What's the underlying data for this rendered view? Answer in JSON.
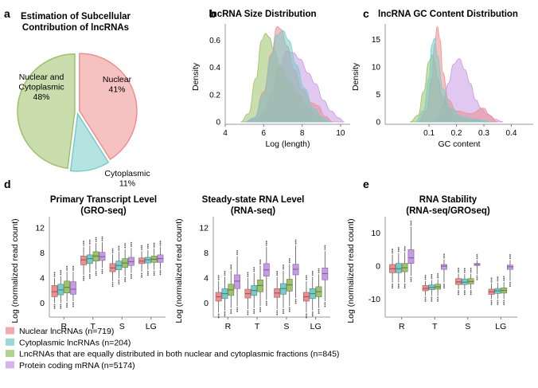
{
  "colors": {
    "nuclear": "#ee8e8e",
    "cytoplasmic": "#76cccb",
    "both": "#9cc26a",
    "protein": "#c79ae6"
  },
  "chart_data": [
    {
      "id": "a",
      "panel_label": "a",
      "type": "pie",
      "title": "Estimation of Subcellular Contribution of lncRNAs",
      "title_lines": [
        "Estimation of Subcellular",
        "Contribution of lncRNAs"
      ],
      "slices": [
        {
          "key": "nuclear",
          "label_lines": [
            "Nuclear",
            "41%"
          ],
          "value": 41
        },
        {
          "key": "cytoplasmic",
          "label_lines": [
            "Cytoplasmic",
            "11%"
          ],
          "value": 11
        },
        {
          "key": "both",
          "label_lines": [
            "Nuclear and",
            "Cytoplasmic",
            "48%"
          ],
          "value": 48
        }
      ]
    },
    {
      "id": "b",
      "panel_label": "b",
      "type": "area",
      "title": "lncRNA Size Distribution",
      "xlabel": "Log (length)",
      "ylabel": "Density",
      "xlim": [
        4,
        10.5
      ],
      "ylim": [
        0,
        0.72
      ],
      "xticks": [
        4,
        6,
        8,
        10
      ],
      "yticks": [
        0,
        0.2,
        0.4,
        0.6
      ],
      "ytick_labels": [
        "0",
        "0.2",
        "0.4",
        "0.6"
      ],
      "series": [
        {
          "key": "protein",
          "x": [
            5.0,
            5.6,
            6.0,
            6.4,
            6.8,
            7.2,
            7.5,
            7.9,
            8.3,
            8.7,
            9.1,
            9.5,
            9.9,
            10.2
          ],
          "y": [
            0,
            0.02,
            0.06,
            0.2,
            0.4,
            0.52,
            0.51,
            0.46,
            0.36,
            0.28,
            0.16,
            0.08,
            0.03,
            0
          ]
        },
        {
          "key": "both",
          "x": [
            4.8,
            5.2,
            5.6,
            5.9,
            6.1,
            6.3,
            6.5,
            6.9,
            7.3,
            7.8,
            8.3,
            8.8,
            9.2
          ],
          "y": [
            0,
            0.06,
            0.32,
            0.6,
            0.65,
            0.62,
            0.54,
            0.4,
            0.3,
            0.2,
            0.1,
            0.04,
            0
          ]
        },
        {
          "key": "nuclear",
          "x": [
            5.0,
            5.5,
            6.0,
            6.4,
            6.7,
            6.9,
            7.2,
            7.6,
            8.0,
            8.5,
            8.8,
            9.2,
            9.6
          ],
          "y": [
            0,
            0.03,
            0.22,
            0.5,
            0.7,
            0.68,
            0.56,
            0.38,
            0.24,
            0.14,
            0.12,
            0.04,
            0
          ]
        },
        {
          "key": "cytoplasmic",
          "x": [
            5.0,
            5.5,
            6.0,
            6.4,
            6.7,
            7.0,
            7.3,
            7.7,
            8.1,
            8.6,
            9.1,
            9.5
          ],
          "y": [
            0,
            0.03,
            0.2,
            0.48,
            0.64,
            0.67,
            0.6,
            0.42,
            0.25,
            0.1,
            0.03,
            0
          ]
        }
      ]
    },
    {
      "id": "c",
      "panel_label": "c",
      "type": "area",
      "title": "lncRNA GC Content Distribution",
      "xlabel": "GC content",
      "ylabel": "Density",
      "xlim": [
        -0.06,
        0.48
      ],
      "ylim": [
        0,
        17.8
      ],
      "xticks": [
        0.1,
        0.2,
        0.3,
        0.4
      ],
      "yticks": [
        0,
        5,
        10,
        15
      ],
      "ytick_labels": [
        "0",
        "5",
        "10",
        "15"
      ],
      "series": [
        {
          "key": "protein",
          "x": [
            0.1,
            0.13,
            0.15,
            0.17,
            0.19,
            0.21,
            0.23,
            0.25,
            0.27,
            0.29,
            0.31,
            0.34,
            0.37
          ],
          "y": [
            0,
            0.5,
            3,
            7,
            10.5,
            11.5,
            9.5,
            7,
            4,
            2.5,
            1.5,
            0.5,
            0
          ]
        },
        {
          "key": "both",
          "x": [
            0.03,
            0.06,
            0.08,
            0.1,
            0.11,
            0.12,
            0.13,
            0.15,
            0.17,
            0.2,
            0.23,
            0.27,
            0.31
          ],
          "y": [
            0,
            1.2,
            5.5,
            11,
            12.2,
            11,
            8,
            4.5,
            2.5,
            1,
            0.5,
            0.3,
            0
          ]
        },
        {
          "key": "nuclear",
          "x": [
            0.06,
            0.09,
            0.11,
            0.12,
            0.13,
            0.14,
            0.15,
            0.17,
            0.2,
            0.25,
            0.3,
            0.32,
            0.35
          ],
          "y": [
            0,
            2,
            8,
            14,
            17.3,
            15,
            9,
            4,
            2,
            1.5,
            2.5,
            1.2,
            0
          ]
        },
        {
          "key": "cytoplasmic",
          "x": [
            0.05,
            0.08,
            0.1,
            0.11,
            0.12,
            0.13,
            0.15,
            0.18,
            0.22,
            0.28,
            0.33
          ],
          "y": [
            0,
            2,
            8,
            14,
            15.2,
            12,
            6,
            2.5,
            1,
            0.4,
            0
          ]
        }
      ]
    },
    {
      "id": "d1",
      "panel_label": "d",
      "type": "box",
      "title": "Primary Transcript Level (GRO-seq)",
      "title_lines": [
        "Primary Transcript Level",
        "(GRO-seq)"
      ],
      "ylabel": "Log (normalized read count)",
      "ylim": [
        -2,
        13.8
      ],
      "yticks": [
        0,
        4,
        8,
        12
      ],
      "categories": [
        "R",
        "T",
        "S",
        "LG"
      ],
      "series_order": [
        "nuclear",
        "cytoplasmic",
        "both",
        "protein"
      ],
      "boxes": {
        "R": {
          "nuclear": [
            0,
            1.0,
            1.8,
            2.8,
            4.0
          ],
          "cytoplasmic": [
            0,
            1.3,
            2.1,
            3.0,
            4.3
          ],
          "both": [
            0.2,
            1.6,
            2.5,
            3.5,
            5.0
          ],
          "protein": [
            0.3,
            1.4,
            2.2,
            3.4,
            5.0
          ]
        },
        "T": {
          "nuclear": [
            4.5,
            6.1,
            6.9,
            7.5,
            9.0
          ],
          "cytoplasmic": [
            4.8,
            6.3,
            7.1,
            7.7,
            9.2
          ],
          "both": [
            5.3,
            6.7,
            7.5,
            8.2,
            9.6
          ],
          "protein": [
            5.6,
            6.8,
            7.4,
            8.1,
            9.7
          ]
        },
        "S": {
          "nuclear": [
            3.5,
            5.0,
            5.6,
            6.3,
            7.8
          ],
          "cytoplasmic": [
            3.9,
            5.3,
            6.0,
            6.7,
            8.2
          ],
          "both": [
            4.3,
            5.7,
            6.4,
            7.1,
            8.6
          ],
          "protein": [
            4.8,
            6.0,
            6.6,
            7.3,
            8.8
          ]
        },
        "LG": {
          "nuclear": [
            5.0,
            6.3,
            6.7,
            7.2,
            8.3
          ],
          "cytoplasmic": [
            5.3,
            6.4,
            6.9,
            7.3,
            8.5
          ],
          "both": [
            5.3,
            6.5,
            7.0,
            7.5,
            8.7
          ],
          "protein": [
            5.4,
            6.5,
            7.1,
            7.7,
            9.0
          ]
        }
      }
    },
    {
      "id": "d2",
      "panel_label": "",
      "type": "box",
      "title": "Steady-state RNA Level (RNA-seq)",
      "title_lines": [
        "Steady-state RNA Level",
        "(RNA-seq)"
      ],
      "ylabel": "Log (normalized read count)",
      "ylim": [
        -2,
        13.8
      ],
      "yticks": [
        0,
        4,
        8,
        12
      ],
      "categories": [
        "R",
        "T",
        "S",
        "LG"
      ],
      "series_order": [
        "nuclear",
        "cytoplasmic",
        "both",
        "protein"
      ],
      "boxes": {
        "R": {
          "nuclear": [
            -1.5,
            0.3,
            1.0,
            1.7,
            3.5
          ],
          "cytoplasmic": [
            -1.2,
            0.7,
            1.5,
            2.3,
            4.2
          ],
          "both": [
            -0.8,
            1.2,
            2.1,
            3.0,
            5.2
          ],
          "protein": [
            -0.5,
            2.3,
            3.5,
            4.5,
            7.5
          ]
        },
        "T": {
          "nuclear": [
            -1.0,
            0.8,
            1.5,
            2.2,
            4.0
          ],
          "cytoplasmic": [
            -0.8,
            1.2,
            2.0,
            2.8,
            4.8
          ],
          "both": [
            -0.5,
            1.8,
            2.8,
            3.7,
            6.0
          ],
          "protein": [
            0.5,
            4.3,
            5.3,
            6.3,
            9.0
          ]
        },
        "S": {
          "nuclear": [
            -1.0,
            0.9,
            1.6,
            2.3,
            4.2
          ],
          "cytoplasmic": [
            -0.8,
            1.4,
            2.3,
            3.1,
            5.2
          ],
          "both": [
            -0.5,
            1.9,
            2.9,
            3.8,
            6.2
          ],
          "protein": [
            0.8,
            4.5,
            5.4,
            6.2,
            9.2
          ]
        },
        "LG": {
          "nuclear": [
            -1.5,
            0.3,
            1.0,
            1.7,
            3.5
          ],
          "cytoplasmic": [
            -1.2,
            0.7,
            1.5,
            2.3,
            4.2
          ],
          "both": [
            -0.8,
            1.0,
            1.8,
            2.6,
            4.6
          ],
          "protein": [
            0.3,
            3.7,
            4.7,
            5.6,
            8.3
          ]
        }
      }
    },
    {
      "id": "e",
      "panel_label": "e",
      "type": "box",
      "title": "RNA Stability (RNA-seq/GROseq)",
      "title_lines": [
        "RNA Stability",
        "(RNA-seq/GROseq)"
      ],
      "ylabel": "Log (normalized read count)",
      "ylim": [
        -15,
        15
      ],
      "yticks": [
        -10,
        0,
        10
      ],
      "categories": [
        "R",
        "T",
        "S",
        "LG"
      ],
      "series_order": [
        "nuclear",
        "cytoplasmic",
        "both",
        "protein"
      ],
      "boxes": {
        "R": {
          "nuclear": [
            -5.0,
            -2.0,
            -0.8,
            0.5,
            3.5
          ],
          "cytoplasmic": [
            -5.0,
            -2.0,
            -0.8,
            0.8,
            4.0
          ],
          "both": [
            -5.0,
            -1.7,
            -0.5,
            0.8,
            4.2
          ],
          "protein": [
            -3.0,
            0.8,
            2.5,
            5.0,
            12.0
          ]
        },
        "T": {
          "nuclear": [
            -9.0,
            -7.5,
            -6.8,
            -5.9,
            -4.5
          ],
          "cytoplasmic": [
            -9.0,
            -7.2,
            -6.5,
            -5.7,
            -4.2
          ],
          "both": [
            -9.0,
            -7.0,
            -6.3,
            -5.5,
            -4.0
          ],
          "protein": [
            -5.0,
            -1.0,
            0.0,
            0.5,
            2.0
          ]
        },
        "S": {
          "nuclear": [
            -7.0,
            -5.6,
            -4.8,
            -3.8,
            -2.3
          ],
          "cytoplasmic": [
            -7.0,
            -5.6,
            -4.9,
            -3.9,
            -2.4
          ],
          "both": [
            -7.0,
            -5.4,
            -4.7,
            -3.8,
            -2.3
          ],
          "protein": [
            -2.5,
            0.2,
            0.5,
            0.8,
            1.8
          ]
        },
        "LG": {
          "nuclear": [
            -10.0,
            -8.6,
            -7.8,
            -7.0,
            -5.3
          ],
          "cytoplasmic": [
            -10.0,
            -8.3,
            -7.5,
            -6.8,
            -5.0
          ],
          "both": [
            -10.0,
            -8.2,
            -7.4,
            -6.6,
            -4.8
          ],
          "protein": [
            -4.5,
            -1.0,
            -0.2,
            0.3,
            1.8
          ]
        }
      }
    }
  ],
  "legend": [
    {
      "key": "nuclear",
      "label": "Nuclear lncRNAs (n=719)"
    },
    {
      "key": "cytoplasmic",
      "label": "Cytoplasmic lncRNAs (n=204)"
    },
    {
      "key": "both",
      "label": "LncRNAs that are equally distributed in both nuclear and cytoplasmic fractions (n=845)"
    },
    {
      "key": "protein",
      "label": "Protein coding mRNA (n=5174)"
    }
  ]
}
